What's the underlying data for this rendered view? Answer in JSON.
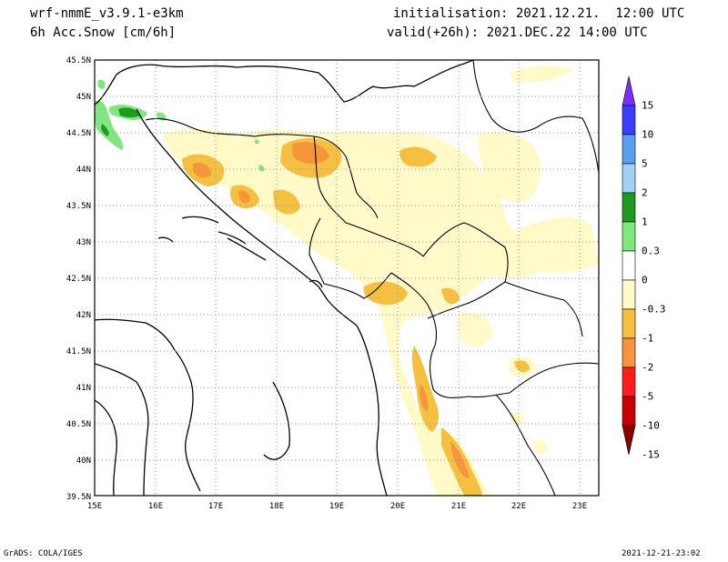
{
  "header": {
    "model": "wrf-nmmE_v3.9.1-e3km",
    "field": "6h Acc.Snow [cm/6h]",
    "init": "initialisation: 2021.12.21.  12:00 UTC",
    "valid": "valid(+26h): 2021.DEC.22 14:00 UTC"
  },
  "footer": {
    "credit": "GrADS: COLA/IGES",
    "timestamp": "2021-12-21-23:02"
  },
  "map": {
    "lon_labels": [
      "15E",
      "16E",
      "17E",
      "18E",
      "19E",
      "20E",
      "21E",
      "22E",
      "23E"
    ],
    "lat_labels": [
      "45.5N",
      "45N",
      "44.5N",
      "44N",
      "43.5N",
      "43N",
      "42.5N",
      "42N",
      "41.5N",
      "41N",
      "40.5N",
      "40N",
      "39.5N"
    ]
  },
  "colorbar": {
    "labels": [
      "15",
      "10",
      "5",
      "2",
      "1",
      "0.3",
      "0",
      "-0.3",
      "-1",
      "-2",
      "-5",
      "-10",
      "-15"
    ],
    "colors": [
      "#7c2cff",
      "#3c3cff",
      "#5aa0f0",
      "#a0d2f8",
      "#1e9a1e",
      "#80e680",
      "#ffffff",
      "#fffac8",
      "#f5c040",
      "#f5963c",
      "#ff1e1e",
      "#c80000",
      "#8c0000"
    ]
  }
}
